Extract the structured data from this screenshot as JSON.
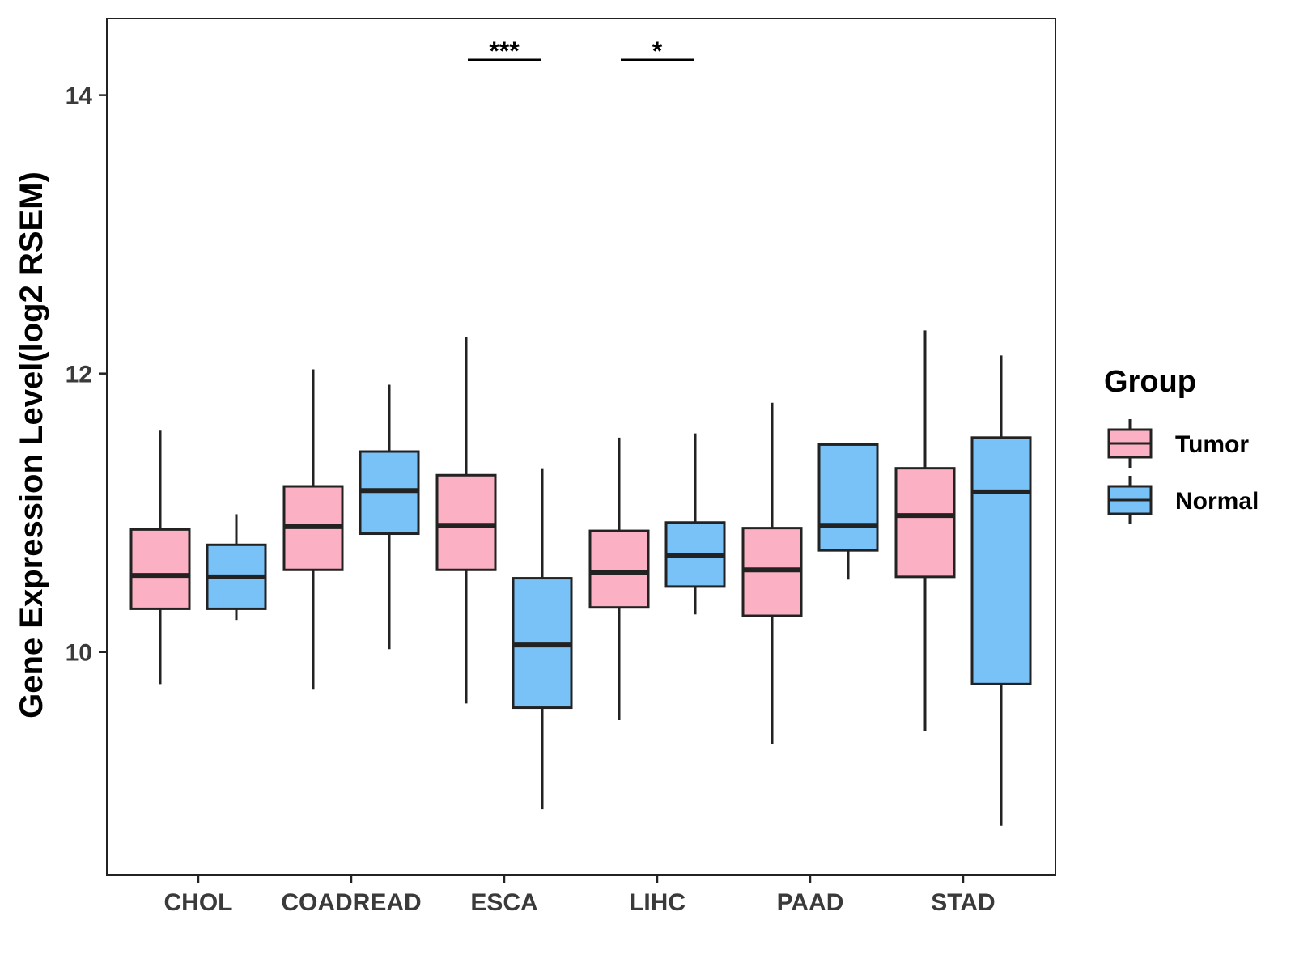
{
  "chart_data": {
    "type": "boxplot",
    "title": "",
    "xlabel": "",
    "ylabel": "Gene Expression Level(log2 RSEM)",
    "ylim": [
      8.4,
      14.55
    ],
    "yticks": [
      10,
      12,
      14
    ],
    "categories": [
      "CHOL",
      "COADREAD",
      "ESCA",
      "LIHC",
      "PAAD",
      "STAD"
    ],
    "legend": {
      "title": "Group",
      "position": "right",
      "entries": [
        {
          "name": "Tumor",
          "color": "#FBB1C3"
        },
        {
          "name": "Normal",
          "color": "#79C2F8"
        }
      ]
    },
    "series": [
      {
        "name": "Tumor",
        "color": "#FBB1C3",
        "boxes": [
          {
            "category": "CHOL",
            "min": 9.77,
            "q1": 10.31,
            "median": 10.55,
            "q3": 10.88,
            "max": 11.59
          },
          {
            "category": "COADREAD",
            "min": 9.73,
            "q1": 10.59,
            "median": 10.9,
            "q3": 11.19,
            "max": 12.03
          },
          {
            "category": "ESCA",
            "min": 9.63,
            "q1": 10.59,
            "median": 10.91,
            "q3": 11.27,
            "max": 12.26
          },
          {
            "category": "LIHC",
            "min": 9.51,
            "q1": 10.32,
            "median": 10.57,
            "q3": 10.87,
            "max": 11.54
          },
          {
            "category": "PAAD",
            "min": 9.34,
            "q1": 10.26,
            "median": 10.59,
            "q3": 10.89,
            "max": 11.79
          },
          {
            "category": "STAD",
            "min": 9.43,
            "q1": 10.54,
            "median": 10.98,
            "q3": 11.32,
            "max": 12.31
          }
        ]
      },
      {
        "name": "Normal",
        "color": "#79C2F8",
        "boxes": [
          {
            "category": "CHOL",
            "min": 10.23,
            "q1": 10.31,
            "median": 10.54,
            "q3": 10.77,
            "max": 10.99
          },
          {
            "category": "COADREAD",
            "min": 10.02,
            "q1": 10.85,
            "median": 11.16,
            "q3": 11.44,
            "max": 11.92
          },
          {
            "category": "ESCA",
            "min": 8.87,
            "q1": 9.6,
            "median": 10.05,
            "q3": 10.53,
            "max": 11.32
          },
          {
            "category": "LIHC",
            "min": 10.27,
            "q1": 10.47,
            "median": 10.69,
            "q3": 10.93,
            "max": 11.57
          },
          {
            "category": "PAAD",
            "min": 10.52,
            "q1": 10.73,
            "median": 10.91,
            "q3": 11.49,
            "max": 11.49
          },
          {
            "category": "STAD",
            "min": 8.75,
            "q1": 9.77,
            "median": 11.15,
            "q3": 11.54,
            "max": 12.13
          }
        ]
      }
    ],
    "annotations": [
      {
        "category": "ESCA",
        "label": "***"
      },
      {
        "category": "LIHC",
        "label": "*"
      }
    ]
  }
}
